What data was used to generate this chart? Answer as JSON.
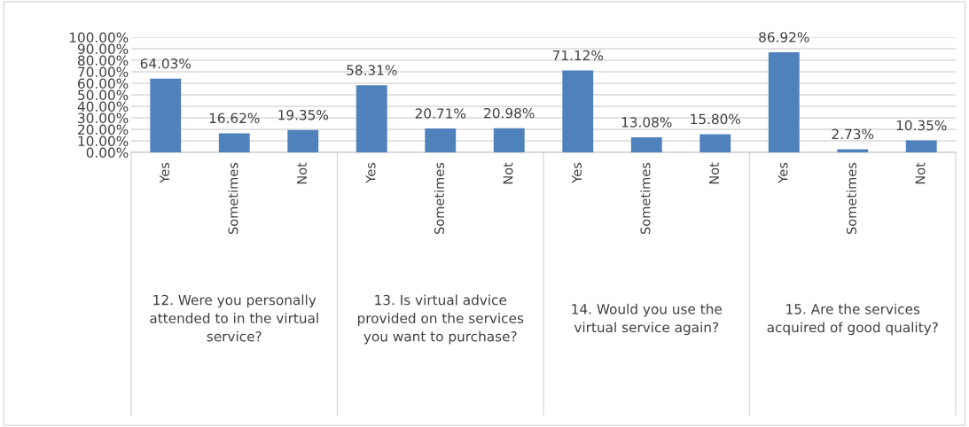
{
  "chart_data": {
    "type": "bar",
    "categories": [
      "Yes",
      "Sometimes",
      "Not",
      "Yes",
      "Sometimes",
      "Not",
      "Yes",
      "Sometimes",
      "Not",
      "Yes",
      "Sometimes",
      "Not"
    ],
    "values": [
      64.03,
      16.62,
      19.35,
      58.31,
      20.71,
      20.98,
      71.12,
      13.08,
      15.8,
      86.92,
      2.73,
      10.35
    ],
    "value_labels": [
      "64.03%",
      "16.62%",
      "19.35%",
      "58.31%",
      "20.71%",
      "20.98%",
      "71.12%",
      "13.08%",
      "15.80%",
      "86.92%",
      "2.73%",
      "10.35%"
    ],
    "color": "#4f81bd",
    "ylim": [
      0,
      100
    ],
    "yticks": [
      {
        "value": 0,
        "label": "0.00%"
      },
      {
        "value": 10,
        "label": "10.00%"
      },
      {
        "value": 20,
        "label": "20.00%"
      },
      {
        "value": 30,
        "label": "30.00%"
      },
      {
        "value": 40,
        "label": "40.00%"
      },
      {
        "value": 50,
        "label": "50.00%"
      },
      {
        "value": 60,
        "label": "60.00%"
      },
      {
        "value": 70,
        "label": "70.00%"
      },
      {
        "value": 80,
        "label": "80.00%"
      },
      {
        "value": 90,
        "label": "90.00%"
      },
      {
        "value": 100,
        "label": "100.00%"
      }
    ],
    "grid": "y",
    "annotations": [
      "12. Were you personally attended to in the virtual service?",
      "13. Is virtual advice provided on the services you want to purchase?",
      "14. Would you use the virtual service again?",
      "15. Are the services acquired of good quality?"
    ]
  }
}
